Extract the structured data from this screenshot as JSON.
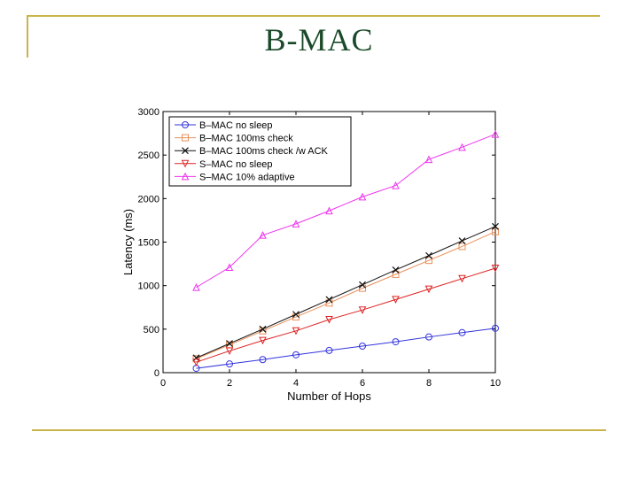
{
  "slide": {
    "title": "B-MAC"
  },
  "chart_data": {
    "type": "line",
    "title": "",
    "xlabel": "Number of Hops",
    "ylabel": "Latency (ms)",
    "xlim": [
      0,
      10
    ],
    "ylim": [
      0,
      3000
    ],
    "x_ticks": [
      0,
      2,
      4,
      6,
      8,
      10
    ],
    "y_ticks": [
      0,
      500,
      1000,
      1500,
      2000,
      2500,
      3000
    ],
    "grid": false,
    "legend_position": "top-left",
    "series": [
      {
        "name": "B–MAC no sleep",
        "color": "#3333dd",
        "marker": "circle",
        "x": [
          1,
          2,
          3,
          4,
          5,
          6,
          7,
          8,
          9,
          10
        ],
        "y": [
          50,
          100,
          150,
          205,
          255,
          305,
          355,
          410,
          460,
          510
        ]
      },
      {
        "name": "B–MAC 100ms check",
        "color": "#e8905a",
        "marker": "square",
        "x": [
          1,
          2,
          3,
          4,
          5,
          6,
          7,
          8,
          9,
          10
        ],
        "y": [
          160,
          320,
          480,
          640,
          800,
          970,
          1130,
          1290,
          1450,
          1620
        ]
      },
      {
        "name": "B–MAC 100ms check /w ACK",
        "color": "#111111",
        "marker": "x",
        "x": [
          1,
          2,
          3,
          4,
          5,
          6,
          7,
          8,
          9,
          10
        ],
        "y": [
          170,
          335,
          500,
          670,
          840,
          1010,
          1180,
          1345,
          1515,
          1680
        ]
      },
      {
        "name": "S–MAC no sleep",
        "color": "#dd2222",
        "marker": "triangle-down",
        "x": [
          1,
          2,
          3,
          4,
          5,
          6,
          7,
          8,
          9,
          10
        ],
        "y": [
          120,
          250,
          370,
          480,
          610,
          720,
          840,
          960,
          1080,
          1200
        ]
      },
      {
        "name": "S–MAC 10% adaptive",
        "color": "#ee33ee",
        "marker": "triangle-up",
        "x": [
          1,
          2,
          3,
          4,
          5,
          6,
          7,
          8,
          9,
          10
        ],
        "y": [
          980,
          1210,
          1580,
          1710,
          1860,
          2020,
          2150,
          2450,
          2590,
          2740
        ]
      }
    ]
  }
}
